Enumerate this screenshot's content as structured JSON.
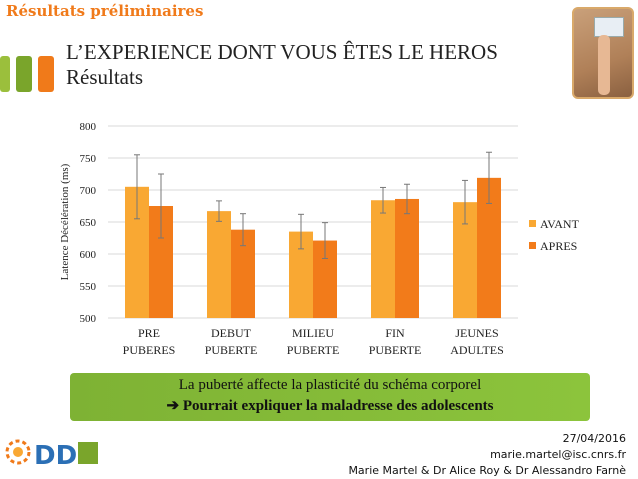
{
  "header": {
    "section_title": "Résultats préliminaires",
    "title_line1": "L’EXPERIENCE DONT VOUS ÊTES LE HEROS",
    "title_line2": "Résultats"
  },
  "chart_data": {
    "type": "bar",
    "ylabel": "Latence Décélération (ms)",
    "ylim": [
      500,
      800
    ],
    "yticks": [
      "500",
      "550",
      "600",
      "650",
      "700",
      "750",
      "800"
    ],
    "categories": [
      [
        "PRE",
        "PUBERES"
      ],
      [
        "DEBUT",
        "PUBERTE"
      ],
      [
        "MILIEU",
        "PUBERTE"
      ],
      [
        "FIN",
        "PUBERTE"
      ],
      [
        "JEUNES",
        "ADULTES"
      ]
    ],
    "series": [
      {
        "name": "AVANT",
        "color": "#f9a833",
        "values": [
          705,
          667,
          635,
          684,
          681
        ],
        "errors": [
          50,
          16,
          27,
          20,
          34
        ]
      },
      {
        "name": "APRES",
        "color": "#f27b1a",
        "values": [
          675,
          638,
          621,
          686,
          719
        ],
        "errors": [
          50,
          25,
          28,
          23,
          40
        ]
      }
    ],
    "grid": true,
    "legend": "right"
  },
  "banner": {
    "line1": "La puberté affecte la plasticité du schéma corporel",
    "arrow": "➔",
    "line2": "Pourrait expliquer la maladresse des adolescents"
  },
  "footer": {
    "date": "27/04/2016",
    "email": "marie.martel@isc.cnrs.fr",
    "authors": "Marie Martel & Dr Alice Roy & Dr Alessandro Farnè"
  },
  "logo": {
    "text": "DDI"
  }
}
